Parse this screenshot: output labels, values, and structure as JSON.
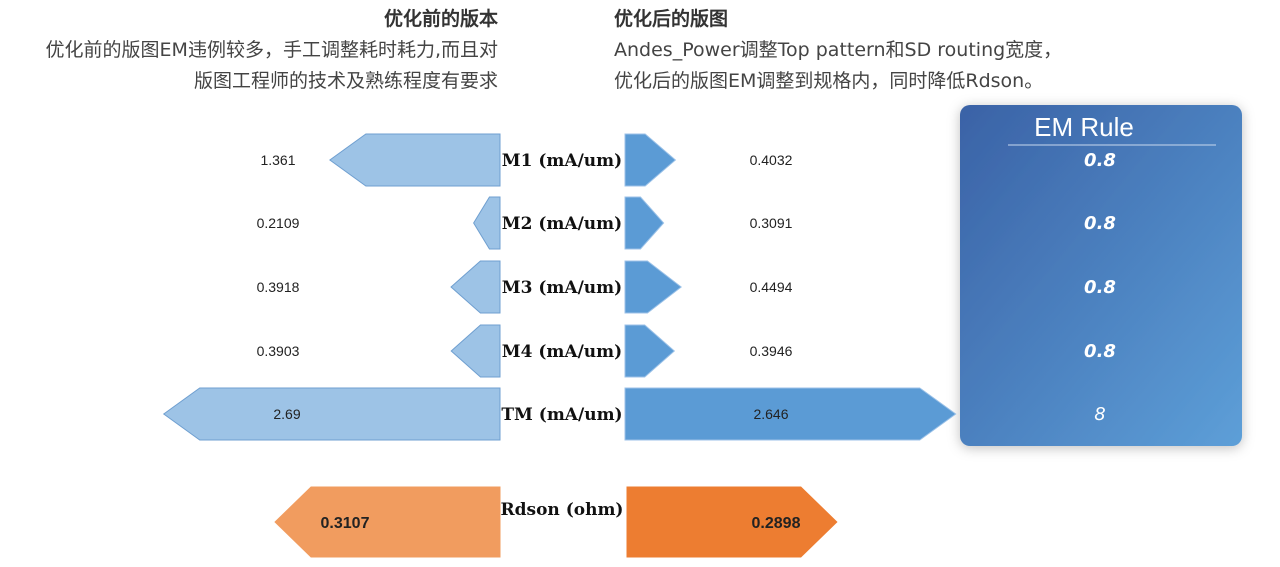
{
  "left_panel": {
    "heading": "优化前的版本",
    "line1": "优化前的版图EM违例较多，手工调整耗时耗力,而且对",
    "line2": "版图工程师的技术及熟练程度有要求"
  },
  "right_panel": {
    "heading": "优化后的版图",
    "line1": "Andes_Power调整Top pattern和SD routing宽度，",
    "line2": "优化后的版图EM调整到规格内，同时降低Rdson。"
  },
  "chart_data": {
    "type": "bar",
    "orientation": "butterfly",
    "categories": [
      "M1 (mA/um)",
      "M2 (mA/um)",
      "M3 (mA/um)",
      "M4 (mA/um)",
      "TM (mA/um)"
    ],
    "series": [
      {
        "values": [
          1.361,
          0.2109,
          0.3918,
          0.3903,
          2.69
        ],
        "labels": [
          "1.361",
          "0.2109",
          "0.3918",
          "0.3903",
          "2.69"
        ],
        "color": "#9dc3e6"
      },
      {
        "values": [
          0.4032,
          0.3091,
          0.4494,
          0.3946,
          2.646
        ],
        "labels": [
          "0.4032",
          "0.3091",
          "0.4494",
          "0.3946",
          "2.646"
        ],
        "color": "#5b9bd5"
      }
    ],
    "rdson": {
      "category": "Rdson (ohm)",
      "before": 0.3107,
      "after": 0.2898,
      "before_label": "0.3107",
      "after_label": "0.2898",
      "before_color": "#f19c5f",
      "after_color": "#ed7d31"
    },
    "em_rule": {
      "title": "EM Rule",
      "values": [
        "0.8",
        "0.8",
        "0.8",
        "0.8",
        "8"
      ]
    }
  }
}
